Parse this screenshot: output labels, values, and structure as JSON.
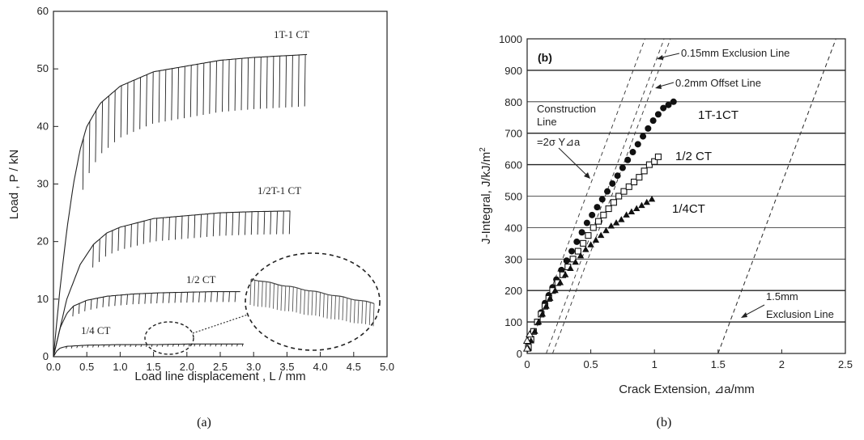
{
  "chart_data": [
    {
      "type": "line",
      "panel_label": "(a)",
      "xlabel": "Load line displacement , L / mm",
      "ylabel": "Load , P / kN",
      "xlim": [
        0,
        5.0
      ],
      "ylim": [
        0,
        60
      ],
      "xticks": [
        "0.0",
        "0.5",
        "1.0",
        "1.5",
        "2.0",
        "2.5",
        "3.0",
        "3.5",
        "4.0",
        "4.5",
        "5.0"
      ],
      "yticks": [
        "0",
        "10",
        "20",
        "30",
        "40",
        "50",
        "60"
      ],
      "grid": false,
      "series": [
        {
          "name": "1T-1 CT",
          "x": [
            0,
            0.1,
            0.2,
            0.3,
            0.4,
            0.5,
            0.7,
            1.0,
            1.5,
            2.0,
            2.5,
            3.0,
            3.5,
            3.8
          ],
          "y": [
            0,
            12,
            22,
            30,
            36,
            40,
            44,
            47,
            49.5,
            50.5,
            51.5,
            52,
            52.3,
            52.5
          ],
          "end_x": 3.8,
          "unload_depth": 9
        },
        {
          "name": "1/2T-1 CT",
          "x": [
            0,
            0.2,
            0.4,
            0.6,
            0.8,
            1.0,
            1.5,
            2.0,
            2.5,
            3.0,
            3.5,
            3.55
          ],
          "y": [
            0,
            10,
            16,
            19.5,
            21.5,
            22.5,
            24,
            24.5,
            25,
            25.2,
            25.3,
            25.3
          ],
          "end_x": 3.55,
          "unload_depth": 4
        },
        {
          "name": "1/2 CT",
          "x": [
            0,
            0.1,
            0.2,
            0.3,
            0.5,
            0.8,
            1.2,
            1.6,
            2.0,
            2.4,
            2.8
          ],
          "y": [
            0,
            5,
            7.5,
            8.8,
            9.8,
            10.5,
            10.9,
            11.1,
            11.2,
            11.3,
            11.3
          ],
          "end_x": 2.8,
          "unload_depth": 1.8
        },
        {
          "name": "1/4 CT",
          "x": [
            0,
            0.05,
            0.1,
            0.2,
            0.5,
            1.0,
            1.5,
            2.0,
            2.5,
            2.85
          ],
          "y": [
            0,
            1,
            1.5,
            1.8,
            2.0,
            2.1,
            2.1,
            2.2,
            2.2,
            2.2
          ],
          "end_x": 2.85,
          "unload_depth": 0.4
        }
      ],
      "annotations": [
        "1T-1 CT",
        "1/2T-1 CT",
        "1/2 CT",
        "1/4 CT"
      ]
    },
    {
      "type": "scatter",
      "panel_label": "(b)",
      "inner_label": "(b)",
      "xlabel": "Crack Extension, ⊿a/mm",
      "ylabel": "J-Integral, J/kJ/m2",
      "xlim": [
        0,
        2.5
      ],
      "ylim": [
        0,
        1000
      ],
      "xticks": [
        "0",
        "0.5",
        "1",
        "1.5",
        "2",
        "2.5"
      ],
      "yticks": [
        "0",
        "100",
        "200",
        "300",
        "400",
        "500",
        "600",
        "700",
        "800",
        "900",
        "1000"
      ],
      "grid": true,
      "series": [
        {
          "name": "1T-1CT",
          "marker": "filled-circle",
          "x": [
            0.01,
            0.03,
            0.05,
            0.08,
            0.11,
            0.14,
            0.17,
            0.2,
            0.23,
            0.27,
            0.31,
            0.35,
            0.39,
            0.43,
            0.47,
            0.51,
            0.55,
            0.59,
            0.63,
            0.67,
            0.71,
            0.75,
            0.79,
            0.83,
            0.87,
            0.91,
            0.95,
            0.99,
            1.03,
            1.07,
            1.11,
            1.15
          ],
          "y": [
            20,
            45,
            70,
            100,
            130,
            160,
            185,
            210,
            235,
            265,
            295,
            325,
            355,
            385,
            415,
            440,
            465,
            490,
            515,
            540,
            565,
            590,
            615,
            640,
            665,
            690,
            715,
            740,
            760,
            780,
            790,
            800
          ]
        },
        {
          "name": "1/2 CT",
          "marker": "open-square",
          "x": [
            0.01,
            0.03,
            0.05,
            0.08,
            0.11,
            0.14,
            0.17,
            0.2,
            0.24,
            0.28,
            0.32,
            0.36,
            0.4,
            0.44,
            0.48,
            0.52,
            0.56,
            0.6,
            0.64,
            0.68,
            0.72,
            0.76,
            0.8,
            0.84,
            0.88,
            0.92,
            0.96,
            1.0,
            1.03
          ],
          "y": [
            20,
            45,
            70,
            100,
            125,
            150,
            175,
            200,
            225,
            250,
            275,
            300,
            325,
            350,
            375,
            400,
            420,
            440,
            460,
            480,
            500,
            515,
            530,
            545,
            560,
            580,
            600,
            610,
            625
          ]
        },
        {
          "name": "1/4CT",
          "marker": "filled-triangle",
          "x": [
            0.01,
            0.03,
            0.06,
            0.09,
            0.12,
            0.15,
            0.18,
            0.22,
            0.26,
            0.3,
            0.34,
            0.38,
            0.42,
            0.46,
            0.5,
            0.54,
            0.58,
            0.62,
            0.66,
            0.7,
            0.74,
            0.78,
            0.82,
            0.86,
            0.9,
            0.94,
            0.98
          ],
          "y": [
            15,
            40,
            70,
            100,
            125,
            150,
            175,
            200,
            225,
            250,
            270,
            290,
            310,
            330,
            345,
            360,
            375,
            390,
            405,
            415,
            425,
            440,
            450,
            460,
            470,
            480,
            490
          ]
        }
      ],
      "construction_lines": [
        {
          "label": "0.15mm Exclusion Line",
          "x0": 0.15
        },
        {
          "label": "0.2mm Offset Line",
          "x0": 0.2
        },
        {
          "label": "Construction Line",
          "x0": 0.0
        },
        {
          "label": "1.5mm Exclusion Line",
          "x0": 1.5
        }
      ],
      "construction_slope": 1080,
      "annotations": {
        "exclusion_015": "0.15mm Exclusion Line",
        "offset_02": "0.2mm Offset Line",
        "construction_1": "Construction",
        "construction_2": "Line",
        "construction_3": "=2σ Y⊿a",
        "exclusion_15_1": "1.5mm",
        "exclusion_15_2": "Exclusion Line",
        "label_1T": "1T-1CT",
        "label_half": "1/2  CT",
        "label_quarter": "1/4CT"
      }
    }
  ]
}
